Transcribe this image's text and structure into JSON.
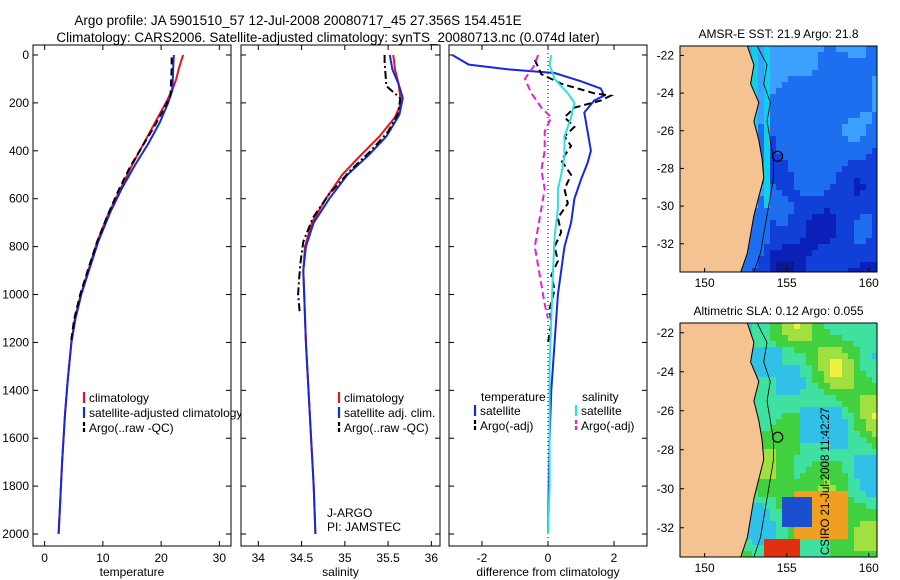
{
  "header": {
    "line1": "Argo profile: JA 5901510_57 12-Jul-2008 20080717_45 27.356S 154.451E",
    "line2": "Climatology: CARS2006. Satellite-adjusted climatology: synTS_20080713.nc (0.074d later)"
  },
  "credit": "CSIRO 21-Jul-2008 11:42:27",
  "colors": {
    "red": "#e8141c",
    "blue": "#1428e0",
    "black": "#000000",
    "cyan": "#2ee0e0",
    "magenta": "#e020e0",
    "land": "#f5c392"
  },
  "chart_data": [
    {
      "type": "line",
      "xlabel": "temperature",
      "ylabel": "",
      "xlim": [
        -2,
        32
      ],
      "ylim": [
        2050,
        0
      ],
      "xticks": [
        "0",
        "10",
        "20",
        "30"
      ],
      "yticks": [
        "0",
        "200",
        "400",
        "600",
        "800",
        "1000",
        "1200",
        "1400",
        "1600",
        "1800",
        "2000"
      ],
      "legend": [
        "climatology",
        "satellite-adjusted climatology",
        "Argo(..raw -QC)"
      ],
      "series": [
        {
          "name": "climatology",
          "color": "red",
          "dash": "solid",
          "points": [
            [
              23.8,
              0
            ],
            [
              23.5,
              20
            ],
            [
              23.0,
              60
            ],
            [
              22.6,
              100
            ],
            [
              22.0,
              140
            ],
            [
              20.8,
              200
            ],
            [
              19.0,
              280
            ],
            [
              17.0,
              370
            ],
            [
              15.0,
              460
            ],
            [
              13.0,
              560
            ],
            [
              11.0,
              660
            ],
            [
              9.0,
              780
            ],
            [
              7.5,
              900
            ],
            [
              6.2,
              1000
            ],
            [
              5.2,
              1100
            ],
            [
              4.6,
              1200
            ],
            [
              4.0,
              1350
            ],
            [
              3.5,
              1500
            ],
            [
              3.0,
              1700
            ],
            [
              2.6,
              1900
            ],
            [
              2.4,
              2000
            ]
          ]
        },
        {
          "name": "satellite-adjusted climatology",
          "color": "blue",
          "dash": "solid",
          "points": [
            [
              22.2,
              0
            ],
            [
              22.1,
              40
            ],
            [
              22.0,
              100
            ],
            [
              21.9,
              150
            ],
            [
              21.2,
              200
            ],
            [
              19.8,
              280
            ],
            [
              17.8,
              370
            ],
            [
              15.5,
              460
            ],
            [
              13.2,
              560
            ],
            [
              11.2,
              660
            ],
            [
              9.2,
              780
            ],
            [
              7.6,
              900
            ],
            [
              6.3,
              1000
            ],
            [
              5.3,
              1100
            ],
            [
              4.6,
              1200
            ],
            [
              4.0,
              1350
            ],
            [
              3.5,
              1500
            ],
            [
              3.0,
              1700
            ],
            [
              2.6,
              1900
            ],
            [
              2.4,
              2000
            ]
          ]
        },
        {
          "name": "Argo(..raw -QC)",
          "color": "black",
          "dash": "dash",
          "points": [
            [
              21.8,
              10
            ],
            [
              21.8,
              60
            ],
            [
              21.7,
              120
            ],
            [
              21.6,
              170
            ],
            [
              20.6,
              220
            ],
            [
              18.8,
              300
            ],
            [
              16.8,
              380
            ],
            [
              14.6,
              470
            ],
            [
              12.6,
              570
            ],
            [
              10.8,
              670
            ],
            [
              9.0,
              780
            ],
            [
              7.4,
              900
            ],
            [
              6.1,
              1000
            ],
            [
              5.1,
              1100
            ],
            [
              4.5,
              1200
            ]
          ]
        }
      ]
    },
    {
      "type": "line",
      "xlabel": "salinity",
      "ylabel": "",
      "xlim": [
        33.8,
        36.1
      ],
      "ylim": [
        2050,
        0
      ],
      "xticks": [
        "34",
        "34.5",
        "35",
        "35.5",
        "36"
      ],
      "yticks": [],
      "legend": [
        "climatology",
        "satellite adj. clim.",
        "Argo(..raw -QC)"
      ],
      "annotation": [
        "J-ARGO",
        "PI: JAMSTEC"
      ],
      "series": [
        {
          "name": "climatology",
          "color": "red",
          "dash": "solid",
          "points": [
            [
              35.56,
              0
            ],
            [
              35.58,
              60
            ],
            [
              35.62,
              120
            ],
            [
              35.65,
              200
            ],
            [
              35.58,
              260
            ],
            [
              35.4,
              340
            ],
            [
              35.18,
              420
            ],
            [
              34.97,
              500
            ],
            [
              34.78,
              600
            ],
            [
              34.62,
              700
            ],
            [
              34.54,
              800
            ],
            [
              34.52,
              900
            ],
            [
              34.53,
              1000
            ],
            [
              34.55,
              1200
            ],
            [
              34.58,
              1400
            ],
            [
              34.61,
              1600
            ],
            [
              34.64,
              1800
            ],
            [
              34.66,
              2000
            ]
          ]
        },
        {
          "name": "satellite adj. clim.",
          "color": "blue",
          "dash": "solid",
          "points": [
            [
              35.52,
              0
            ],
            [
              35.55,
              60
            ],
            [
              35.62,
              120
            ],
            [
              35.67,
              180
            ],
            [
              35.63,
              250
            ],
            [
              35.48,
              340
            ],
            [
              35.27,
              420
            ],
            [
              35.03,
              500
            ],
            [
              34.82,
              600
            ],
            [
              34.64,
              700
            ],
            [
              34.55,
              800
            ],
            [
              34.52,
              900
            ],
            [
              34.53,
              1000
            ],
            [
              34.55,
              1200
            ],
            [
              34.58,
              1400
            ],
            [
              34.61,
              1600
            ],
            [
              34.64,
              1800
            ],
            [
              34.66,
              2000
            ]
          ]
        },
        {
          "name": "Argo(..raw -QC)",
          "color": "black",
          "dash": "dashdot",
          "points": [
            [
              35.46,
              0
            ],
            [
              35.46,
              30
            ],
            [
              35.47,
              80
            ],
            [
              35.48,
              130
            ],
            [
              35.64,
              180
            ],
            [
              35.62,
              240
            ],
            [
              35.5,
              320
            ],
            [
              35.3,
              400
            ],
            [
              35.07,
              480
            ],
            [
              34.82,
              580
            ],
            [
              34.63,
              680
            ],
            [
              34.52,
              780
            ],
            [
              34.49,
              860
            ],
            [
              34.47,
              940
            ],
            [
              34.46,
              1000
            ],
            [
              34.47,
              1040
            ],
            [
              34.48,
              1080
            ]
          ]
        }
      ]
    },
    {
      "type": "line",
      "xlabel": "difference from climatology",
      "ylabel": "",
      "xlim": [
        -3,
        3
      ],
      "ylim": [
        2050,
        0
      ],
      "xticks": [
        "-2",
        "0",
        "2"
      ],
      "yticks": [],
      "legend": [
        "temperature",
        "satellite",
        "Argo(-adj)",
        "salinity",
        "satellite",
        "Argo(-adj)"
      ],
      "series": [
        {
          "name": "temperature satellite",
          "color": "blue",
          "dash": "solid",
          "points": [
            [
              -2.9,
              0
            ],
            [
              -2.4,
              40
            ],
            [
              -1.2,
              60
            ],
            [
              0.2,
              75
            ],
            [
              1.0,
              110
            ],
            [
              1.6,
              140
            ],
            [
              1.7,
              170
            ],
            [
              1.4,
              190
            ],
            [
              1.1,
              240
            ],
            [
              1.2,
              320
            ],
            [
              1.3,
              400
            ],
            [
              1.2,
              450
            ],
            [
              1.0,
              520
            ],
            [
              0.8,
              600
            ],
            [
              0.7,
              700
            ],
            [
              0.5,
              800
            ],
            [
              0.4,
              900
            ],
            [
              0.3,
              1000
            ],
            [
              0.2,
              1200
            ],
            [
              0.1,
              1400
            ],
            [
              0.05,
              1600
            ],
            [
              0.02,
              1800
            ],
            [
              0.0,
              2000
            ]
          ]
        },
        {
          "name": "temperature Argo(-adj)",
          "color": "black",
          "dash": "dash",
          "points": [
            [
              -0.4,
              20
            ],
            [
              -0.2,
              80
            ],
            [
              0.4,
              120
            ],
            [
              1.4,
              160
            ],
            [
              1.9,
              170
            ],
            [
              1.6,
              190
            ],
            [
              0.8,
              220
            ],
            [
              0.5,
              260
            ],
            [
              0.8,
              300
            ],
            [
              0.5,
              340
            ],
            [
              0.7,
              380
            ],
            [
              0.4,
              440
            ],
            [
              0.7,
              500
            ],
            [
              0.5,
              560
            ],
            [
              0.6,
              620
            ],
            [
              0.3,
              680
            ],
            [
              0.4,
              740
            ],
            [
              0.2,
              800
            ],
            [
              0.3,
              860
            ],
            [
              0.1,
              920
            ],
            [
              0.2,
              980
            ],
            [
              0.05,
              1060
            ],
            [
              0.1,
              1120
            ],
            [
              0.0,
              1200
            ]
          ]
        },
        {
          "name": "salinity satellite",
          "color": "cyan",
          "dash": "solid",
          "points": [
            [
              0.1,
              0
            ],
            [
              0.05,
              40
            ],
            [
              0.2,
              100
            ],
            [
              0.6,
              160
            ],
            [
              0.8,
              200
            ],
            [
              0.7,
              260
            ],
            [
              0.5,
              340
            ],
            [
              0.5,
              420
            ],
            [
              0.4,
              500
            ],
            [
              0.3,
              560
            ],
            [
              0.3,
              640
            ],
            [
              0.2,
              760
            ],
            [
              0.15,
              900
            ],
            [
              0.1,
              1100
            ],
            [
              0.05,
              1300
            ],
            [
              0.05,
              1500
            ],
            [
              0.05,
              1800
            ],
            [
              0.0,
              2000
            ]
          ]
        },
        {
          "name": "salinity Argo(-adj)",
          "color": "magenta",
          "dash": "dash",
          "points": [
            [
              -0.3,
              0
            ],
            [
              -0.4,
              40
            ],
            [
              -0.7,
              100
            ],
            [
              -0.5,
              160
            ],
            [
              -0.2,
              220
            ],
            [
              0.1,
              260
            ],
            [
              -0.1,
              320
            ],
            [
              -0.1,
              400
            ],
            [
              -0.2,
              480
            ],
            [
              -0.1,
              560
            ],
            [
              -0.2,
              640
            ],
            [
              -0.3,
              720
            ],
            [
              -0.4,
              800
            ],
            [
              -0.3,
              880
            ],
            [
              -0.2,
              960
            ],
            [
              -0.1,
              1040
            ],
            [
              0.0,
              1100
            ]
          ]
        }
      ]
    },
    {
      "type": "heatmap",
      "title": "AMSR-E SST: 21.9 Argo: 21.8",
      "xlim": [
        148.5,
        160.5
      ],
      "ylim": [
        -33.5,
        -21.5
      ],
      "xticks": [
        "150",
        "155",
        "160"
      ],
      "yticks": [
        "-22",
        "-24",
        "-26",
        "-28",
        "-30",
        "-32"
      ],
      "marker": {
        "lon": 154.451,
        "lat": -27.356
      }
    },
    {
      "type": "heatmap",
      "title": "Altimetric SLA: 0.12 Argo: 0.055",
      "xlim": [
        148.5,
        160.5
      ],
      "ylim": [
        -33.5,
        -21.5
      ],
      "xticks": [
        "150",
        "155",
        "160"
      ],
      "yticks": [
        "-22",
        "-24",
        "-26",
        "-28",
        "-30",
        "-32"
      ],
      "marker": {
        "lon": 154.451,
        "lat": -27.356
      }
    }
  ]
}
